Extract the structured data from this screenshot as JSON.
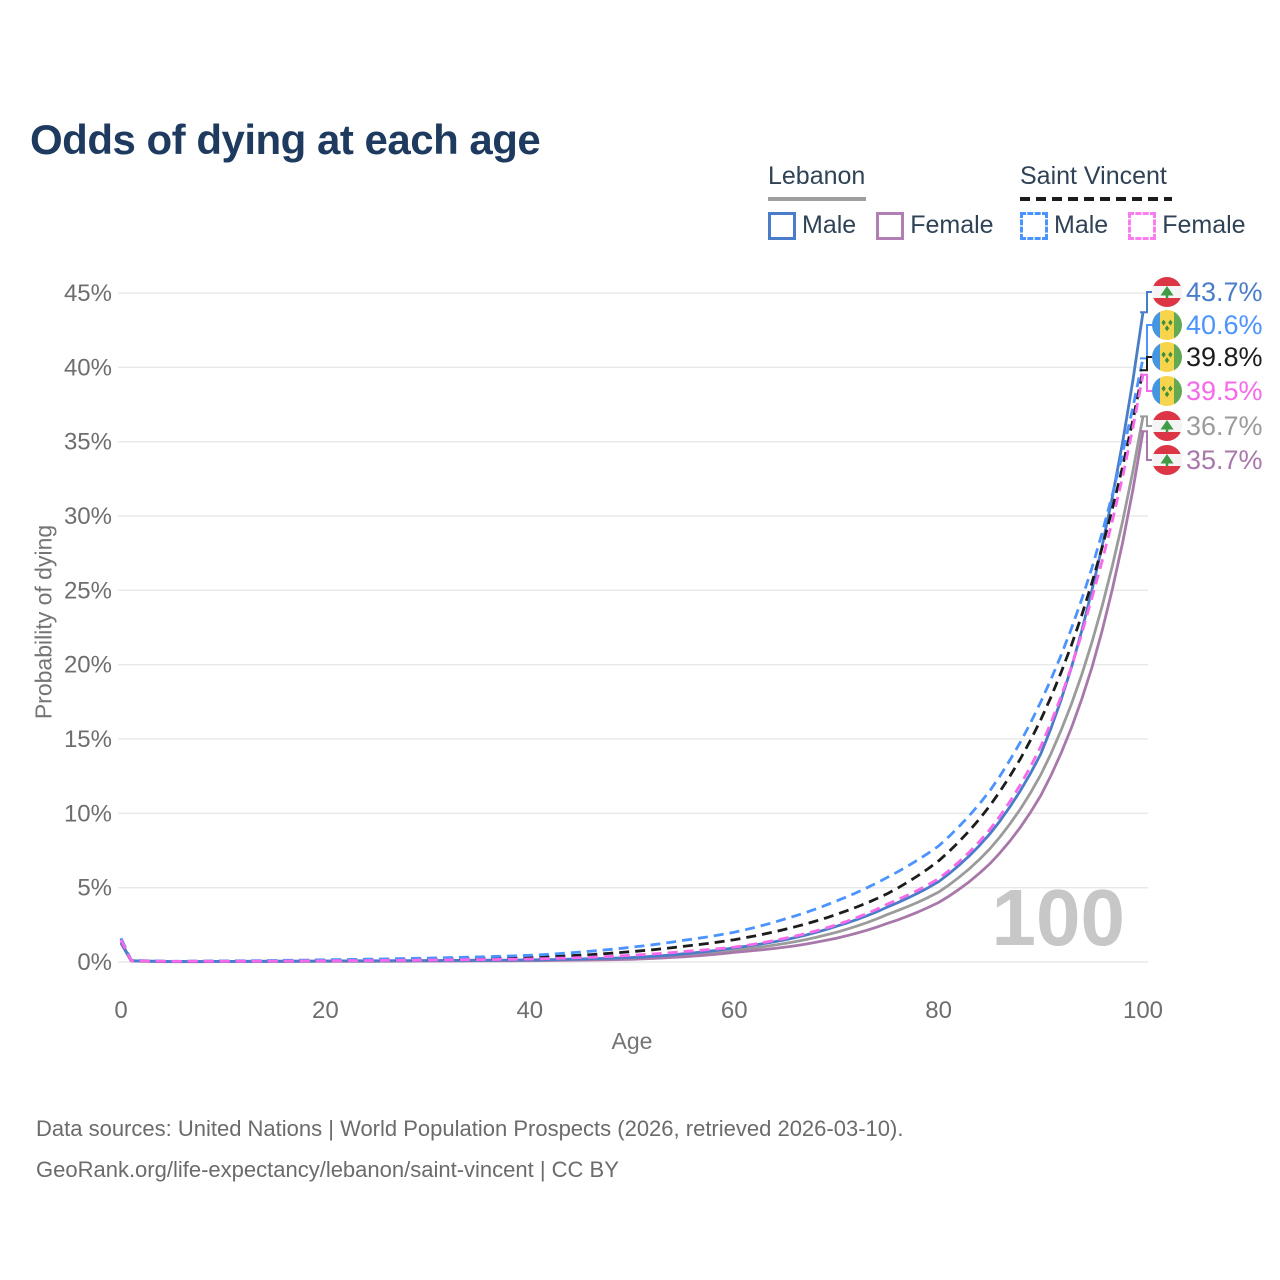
{
  "title": "Odds of dying at each age",
  "watermark": "100",
  "legend": {
    "groups": [
      {
        "label": "Lebanon",
        "line_style": "solid",
        "line_color": "#9b9b9b",
        "items": [
          {
            "label": "Male",
            "color": "#4a7dc9",
            "dashed": false
          },
          {
            "label": "Female",
            "color": "#b27fb4",
            "dashed": false
          }
        ]
      },
      {
        "label": "Saint Vincent",
        "line_style": "dashed",
        "line_color": "#1c1c1c",
        "items": [
          {
            "label": "Male",
            "color": "#4b93ff",
            "dashed": true
          },
          {
            "label": "Female",
            "color": "#fb7bf0",
            "dashed": true
          }
        ]
      }
    ]
  },
  "axes": {
    "x": {
      "label": "Age",
      "ticks": [
        0,
        20,
        40,
        60,
        80,
        100
      ]
    },
    "y": {
      "label": "Probability of dying",
      "ticks": [
        0,
        5,
        10,
        15,
        20,
        25,
        30,
        35,
        40,
        45
      ],
      "tick_suffix": "%"
    }
  },
  "chart_data": {
    "type": "line",
    "title": "Odds of dying at each age",
    "xlabel": "Age",
    "ylabel": "Probability of dying",
    "xlim": [
      0,
      100
    ],
    "ylim": [
      0,
      45
    ],
    "grid": "horizontal",
    "legend_position": "top-right",
    "anchor_ages": [
      0,
      1,
      5,
      20,
      40,
      50,
      55,
      60,
      65,
      70,
      75,
      80,
      85,
      90,
      95,
      100
    ],
    "series": [
      {
        "id": "lebanon-male",
        "name": "Lebanon Male",
        "color": "#4a7dc9",
        "dashed": false,
        "flag": "lebanon",
        "end_label": "43.7%",
        "end_value": 43.7,
        "values": [
          1.35,
          0.09,
          0.03,
          0.07,
          0.14,
          0.3,
          0.55,
          0.95,
          1.5,
          2.4,
          3.7,
          5.4,
          8.6,
          14.0,
          25.0,
          43.7
        ]
      },
      {
        "id": "saint-vincent-male",
        "name": "Saint Vincent Male",
        "color": "#4b93ff",
        "dashed": true,
        "flag": "saint-vincent",
        "end_label": "40.6%",
        "end_value": 40.6,
        "values": [
          1.6,
          0.12,
          0.05,
          0.15,
          0.45,
          1.0,
          1.45,
          2.0,
          2.9,
          4.1,
          5.7,
          7.8,
          11.5,
          17.5,
          26.5,
          40.6
        ]
      },
      {
        "id": "saint-vincent",
        "name": "Saint Vincent",
        "color": "#1c1c1c",
        "dashed": true,
        "flag": "saint-vincent",
        "end_label": "39.8%",
        "end_value": 39.8,
        "values": [
          1.55,
          0.1,
          0.04,
          0.11,
          0.3,
          0.7,
          1.05,
          1.5,
          2.2,
          3.2,
          4.6,
          6.8,
          10.5,
          16.3,
          25.5,
          39.8
        ]
      },
      {
        "id": "saint-vincent-female",
        "name": "Saint Vincent Female",
        "color": "#f768ea",
        "dashed": true,
        "flag": "saint-vincent",
        "end_label": "39.5%",
        "end_value": 39.5,
        "values": [
          1.5,
          0.09,
          0.04,
          0.08,
          0.2,
          0.45,
          0.7,
          1.0,
          1.6,
          2.5,
          3.9,
          5.6,
          8.9,
          14.5,
          24.5,
          39.5
        ]
      },
      {
        "id": "lebanon",
        "name": "Lebanon",
        "color": "#9b9b9b",
        "dashed": false,
        "flag": "lebanon",
        "end_label": "36.7%",
        "end_value": 36.7,
        "values": [
          1.3,
          0.08,
          0.03,
          0.06,
          0.11,
          0.24,
          0.45,
          0.8,
          1.25,
          2.0,
          3.2,
          4.7,
          7.6,
          12.6,
          21.5,
          36.7
        ]
      },
      {
        "id": "lebanon-female",
        "name": "Lebanon Female",
        "color": "#a878ab",
        "dashed": false,
        "flag": "lebanon",
        "end_label": "35.7%",
        "end_value": 35.7,
        "values": [
          1.25,
          0.07,
          0.02,
          0.04,
          0.09,
          0.18,
          0.35,
          0.65,
          1.0,
          1.6,
          2.6,
          4.0,
          6.6,
          11.2,
          19.8,
          35.7
        ]
      }
    ]
  },
  "footer": {
    "line1": "Data sources: United Nations | World Population Prospects (2026, retrieved 2026-03-10).",
    "line2": "GeoRank.org/life-expectancy/lebanon/saint-vincent | CC BY"
  },
  "colors": {
    "title_text": "#1e3a5f",
    "axis_text": "#6e6e6e",
    "axis_title_text": "#757575",
    "gridline": "#e8e8e8",
    "watermark": "#c7c7c7",
    "footer_text": "#6b6b6b",
    "flag_lebanon_red": "#dc3545",
    "flag_lebanon_green": "#3f9b45",
    "flag_sv_blue": "#4596e0",
    "flag_sv_yellow": "#f6d44c",
    "flag_sv_green": "#62a952"
  }
}
